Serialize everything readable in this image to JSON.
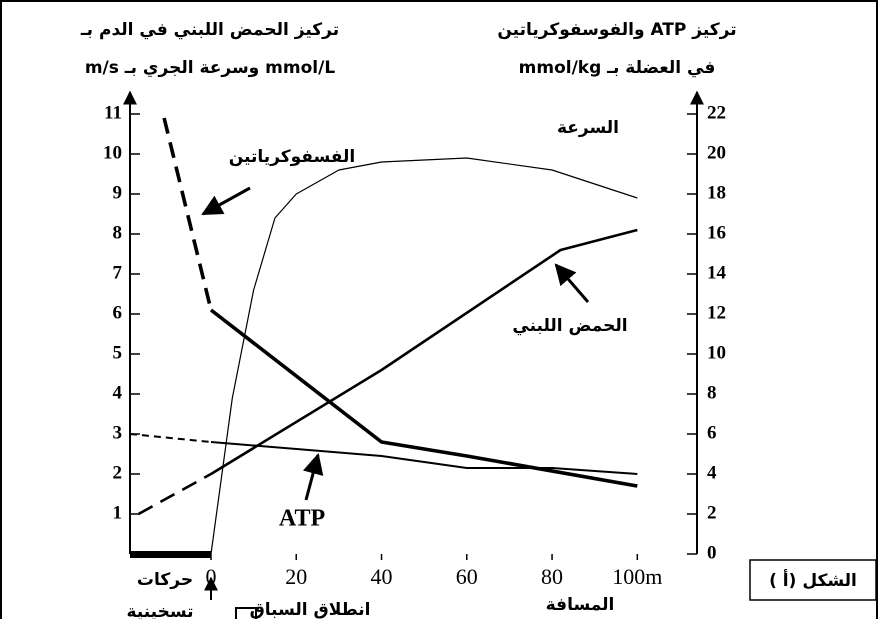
{
  "chart_data": {
    "type": "line",
    "y_label": [
      "تركيز الحمض اللبني في الدم بـ",
      "mmol/L وسرعة الجري بـ m/s"
    ],
    "y2_label": [
      "تركيز ATP والفوسفوكرياتين",
      "في العضلة بـ mmol/kg"
    ],
    "x_label": "المسافة",
    "warmup_label": [
      "حركات",
      "تسخينية"
    ],
    "start_label": "انطلاق السباق",
    "xlim": [
      -19,
      114
    ],
    "xticks": [
      0,
      20,
      40,
      60,
      80,
      {
        "value": 100,
        "label": "100m"
      }
    ],
    "ylim": [
      0,
      11.5
    ],
    "yticks": [
      1,
      2,
      3,
      4,
      5,
      6,
      7,
      8,
      9,
      10,
      11
    ],
    "y2lim": [
      0,
      23
    ],
    "y2ticks": [
      0,
      2,
      4,
      6,
      8,
      10,
      12,
      14,
      16,
      18,
      20,
      22
    ],
    "warmup_dashed": true,
    "series": [
      {
        "name": "السرعة",
        "color": "#000000",
        "width": 1.2,
        "x": [
          0,
          5,
          10,
          15,
          20,
          30,
          40,
          60,
          80,
          100
        ],
        "values": [
          0,
          3.9,
          6.6,
          8.4,
          9,
          9.6,
          9.8,
          9.9,
          9.6,
          8.9
        ]
      },
      {
        "name": "الحمض اللبني",
        "color": "#000000",
        "width": 2.6,
        "x": [
          -17,
          0,
          40,
          82,
          100
        ],
        "values": [
          1,
          2,
          4.6,
          7.6,
          8.1
        ]
      },
      {
        "name": "الفسفوكرياتين",
        "color": "#000000",
        "width": 3.6,
        "axis": "y2",
        "x": [
          -11,
          0,
          40,
          60,
          100
        ],
        "values": [
          21.8,
          12.2,
          5.6,
          4.9,
          3.4
        ]
      },
      {
        "name": "ATP",
        "color": "#000000",
        "width": 2,
        "axis": "y2",
        "x": [
          -19,
          0,
          40,
          60,
          80,
          100
        ],
        "values": [
          6,
          5.6,
          4.9,
          4.3,
          4.3,
          4
        ]
      }
    ]
  },
  "figure_label": "الشكل (أ )"
}
